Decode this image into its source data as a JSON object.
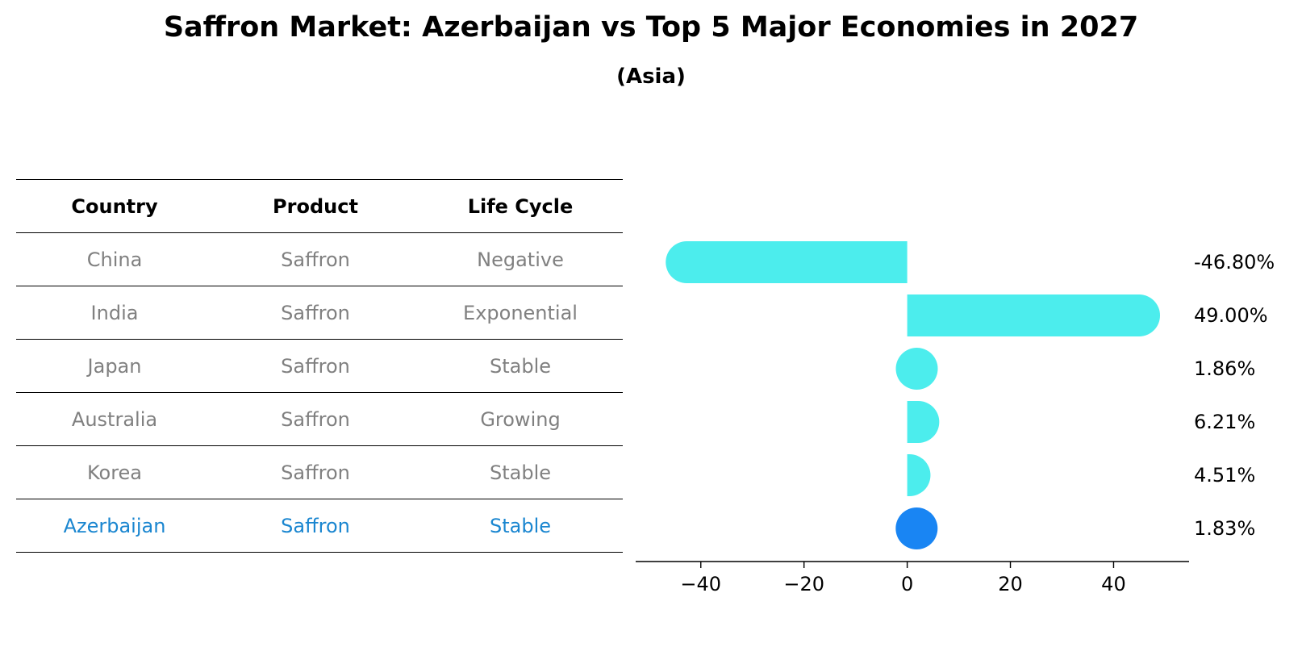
{
  "page": {
    "title": "Saffron Market: Azerbaijan vs Top 5 Major Economies in 2027",
    "subtitle": "(Asia)"
  },
  "table": {
    "headers": [
      "Country",
      "Product",
      "Life Cycle"
    ],
    "rows": [
      [
        "China",
        "Saffron",
        "Negative"
      ],
      [
        "India",
        "Saffron",
        "Exponential"
      ],
      [
        "Japan",
        "Saffron",
        "Stable"
      ],
      [
        "Australia",
        "Saffron",
        "Growing"
      ],
      [
        "Korea",
        "Saffron",
        "Stable"
      ],
      [
        "Azerbaijan",
        "Saffron",
        "Stable"
      ]
    ]
  },
  "chart_data": {
    "type": "bar",
    "orientation": "horizontal",
    "categories": [
      "China",
      "India",
      "Japan",
      "Australia",
      "Korea",
      "Azerbaijan"
    ],
    "values": [
      -46.8,
      49.0,
      1.86,
      6.21,
      4.51,
      1.83
    ],
    "value_labels": [
      "-46.80%",
      "49.00%",
      "1.86%",
      "6.21%",
      "4.51%",
      "1.83%"
    ],
    "xlim": [
      -52,
      54
    ],
    "xticks": [
      -40,
      -20,
      0,
      20,
      40
    ],
    "xtick_labels": [
      "−40",
      "−20",
      "0",
      "20",
      "40"
    ],
    "grid": false,
    "colors": {
      "default": "#4ceded",
      "highlight": "#1985f3",
      "axis": "#000000",
      "highlight_text": "#1a86d0",
      "muted_text": "#808080"
    },
    "highlight_category": "Azerbaijan"
  }
}
